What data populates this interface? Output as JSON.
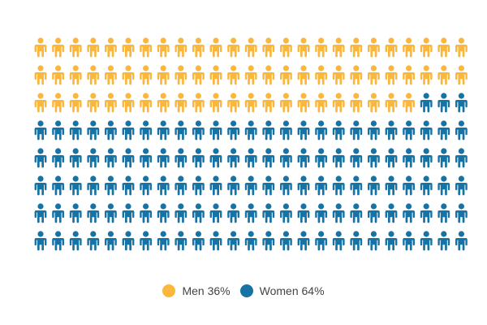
{
  "chart_data": {
    "type": "icon-array",
    "total": 200,
    "rows": 8,
    "columns": 25,
    "fill_order": "row-major",
    "legend_position": "bottom-center",
    "series": [
      {
        "name": "Men",
        "percent": 36,
        "count": 72,
        "color": "#FBB73C",
        "icon": "person-icon",
        "label": "Men 36%"
      },
      {
        "name": "Women",
        "percent": 64,
        "count": 128,
        "color": "#1673A6",
        "icon": "person-icon",
        "label": "Women 64%"
      }
    ]
  }
}
